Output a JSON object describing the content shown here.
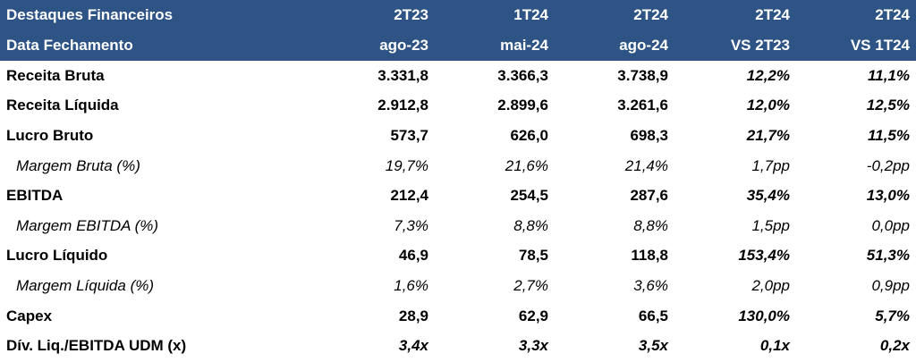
{
  "header": {
    "row1": [
      "Destaques Financeiros",
      "2T23",
      "1T24",
      "2T24",
      "2T24",
      "2T24"
    ],
    "row2": [
      "Data Fechamento",
      "ago-23",
      "mai-24",
      "ago-24",
      "VS 2T23",
      "VS 1T24"
    ]
  },
  "rows": [
    {
      "label": "Receita Bruta",
      "v1": "3.331,8",
      "v2": "3.366,3",
      "v3": "3.738,9",
      "v4": "12,2%",
      "v5": "11,1%"
    },
    {
      "label": "Receita Líquida",
      "v1": "2.912,8",
      "v2": "2.899,6",
      "v3": "3.261,6",
      "v4": "12,0%",
      "v5": "12,5%"
    },
    {
      "label": "Lucro Bruto",
      "v1": "573,7",
      "v2": "626,0",
      "v3": "698,3",
      "v4": "21,7%",
      "v5": "11,5%"
    },
    {
      "label": "Margem Bruta (%)",
      "v1": "19,7%",
      "v2": "21,6%",
      "v3": "21,4%",
      "v4": "1,7pp",
      "v5": "-0,2pp"
    },
    {
      "label": "EBITDA",
      "v1": "212,4",
      "v2": "254,5",
      "v3": "287,6",
      "v4": "35,4%",
      "v5": "13,0%"
    },
    {
      "label": "Margem EBITDA (%)",
      "v1": "7,3%",
      "v2": "8,8%",
      "v3": "8,8%",
      "v4": "1,5pp",
      "v5": "0,0pp"
    },
    {
      "label": "Lucro Líquido",
      "v1": "46,9",
      "v2": "78,5",
      "v3": "118,8",
      "v4": "153,4%",
      "v5": "51,3%"
    },
    {
      "label": "Margem Líquida (%)",
      "v1": "1,6%",
      "v2": "2,7%",
      "v3": "3,6%",
      "v4": "2,0pp",
      "v5": "0,9pp"
    },
    {
      "label": "Capex",
      "v1": "28,9",
      "v2": "62,9",
      "v3": "66,5",
      "v4": "130,0%",
      "v5": "5,7%"
    },
    {
      "label": "Dív. Liq./EBITDA UDM (x)",
      "v1": "3,4x",
      "v2": "3,3x",
      "v3": "3,5x",
      "v4": "0,1x",
      "v5": "0,2x"
    }
  ],
  "colors": {
    "header_bg": "#2e5485",
    "header_text": "#ffffff"
  }
}
